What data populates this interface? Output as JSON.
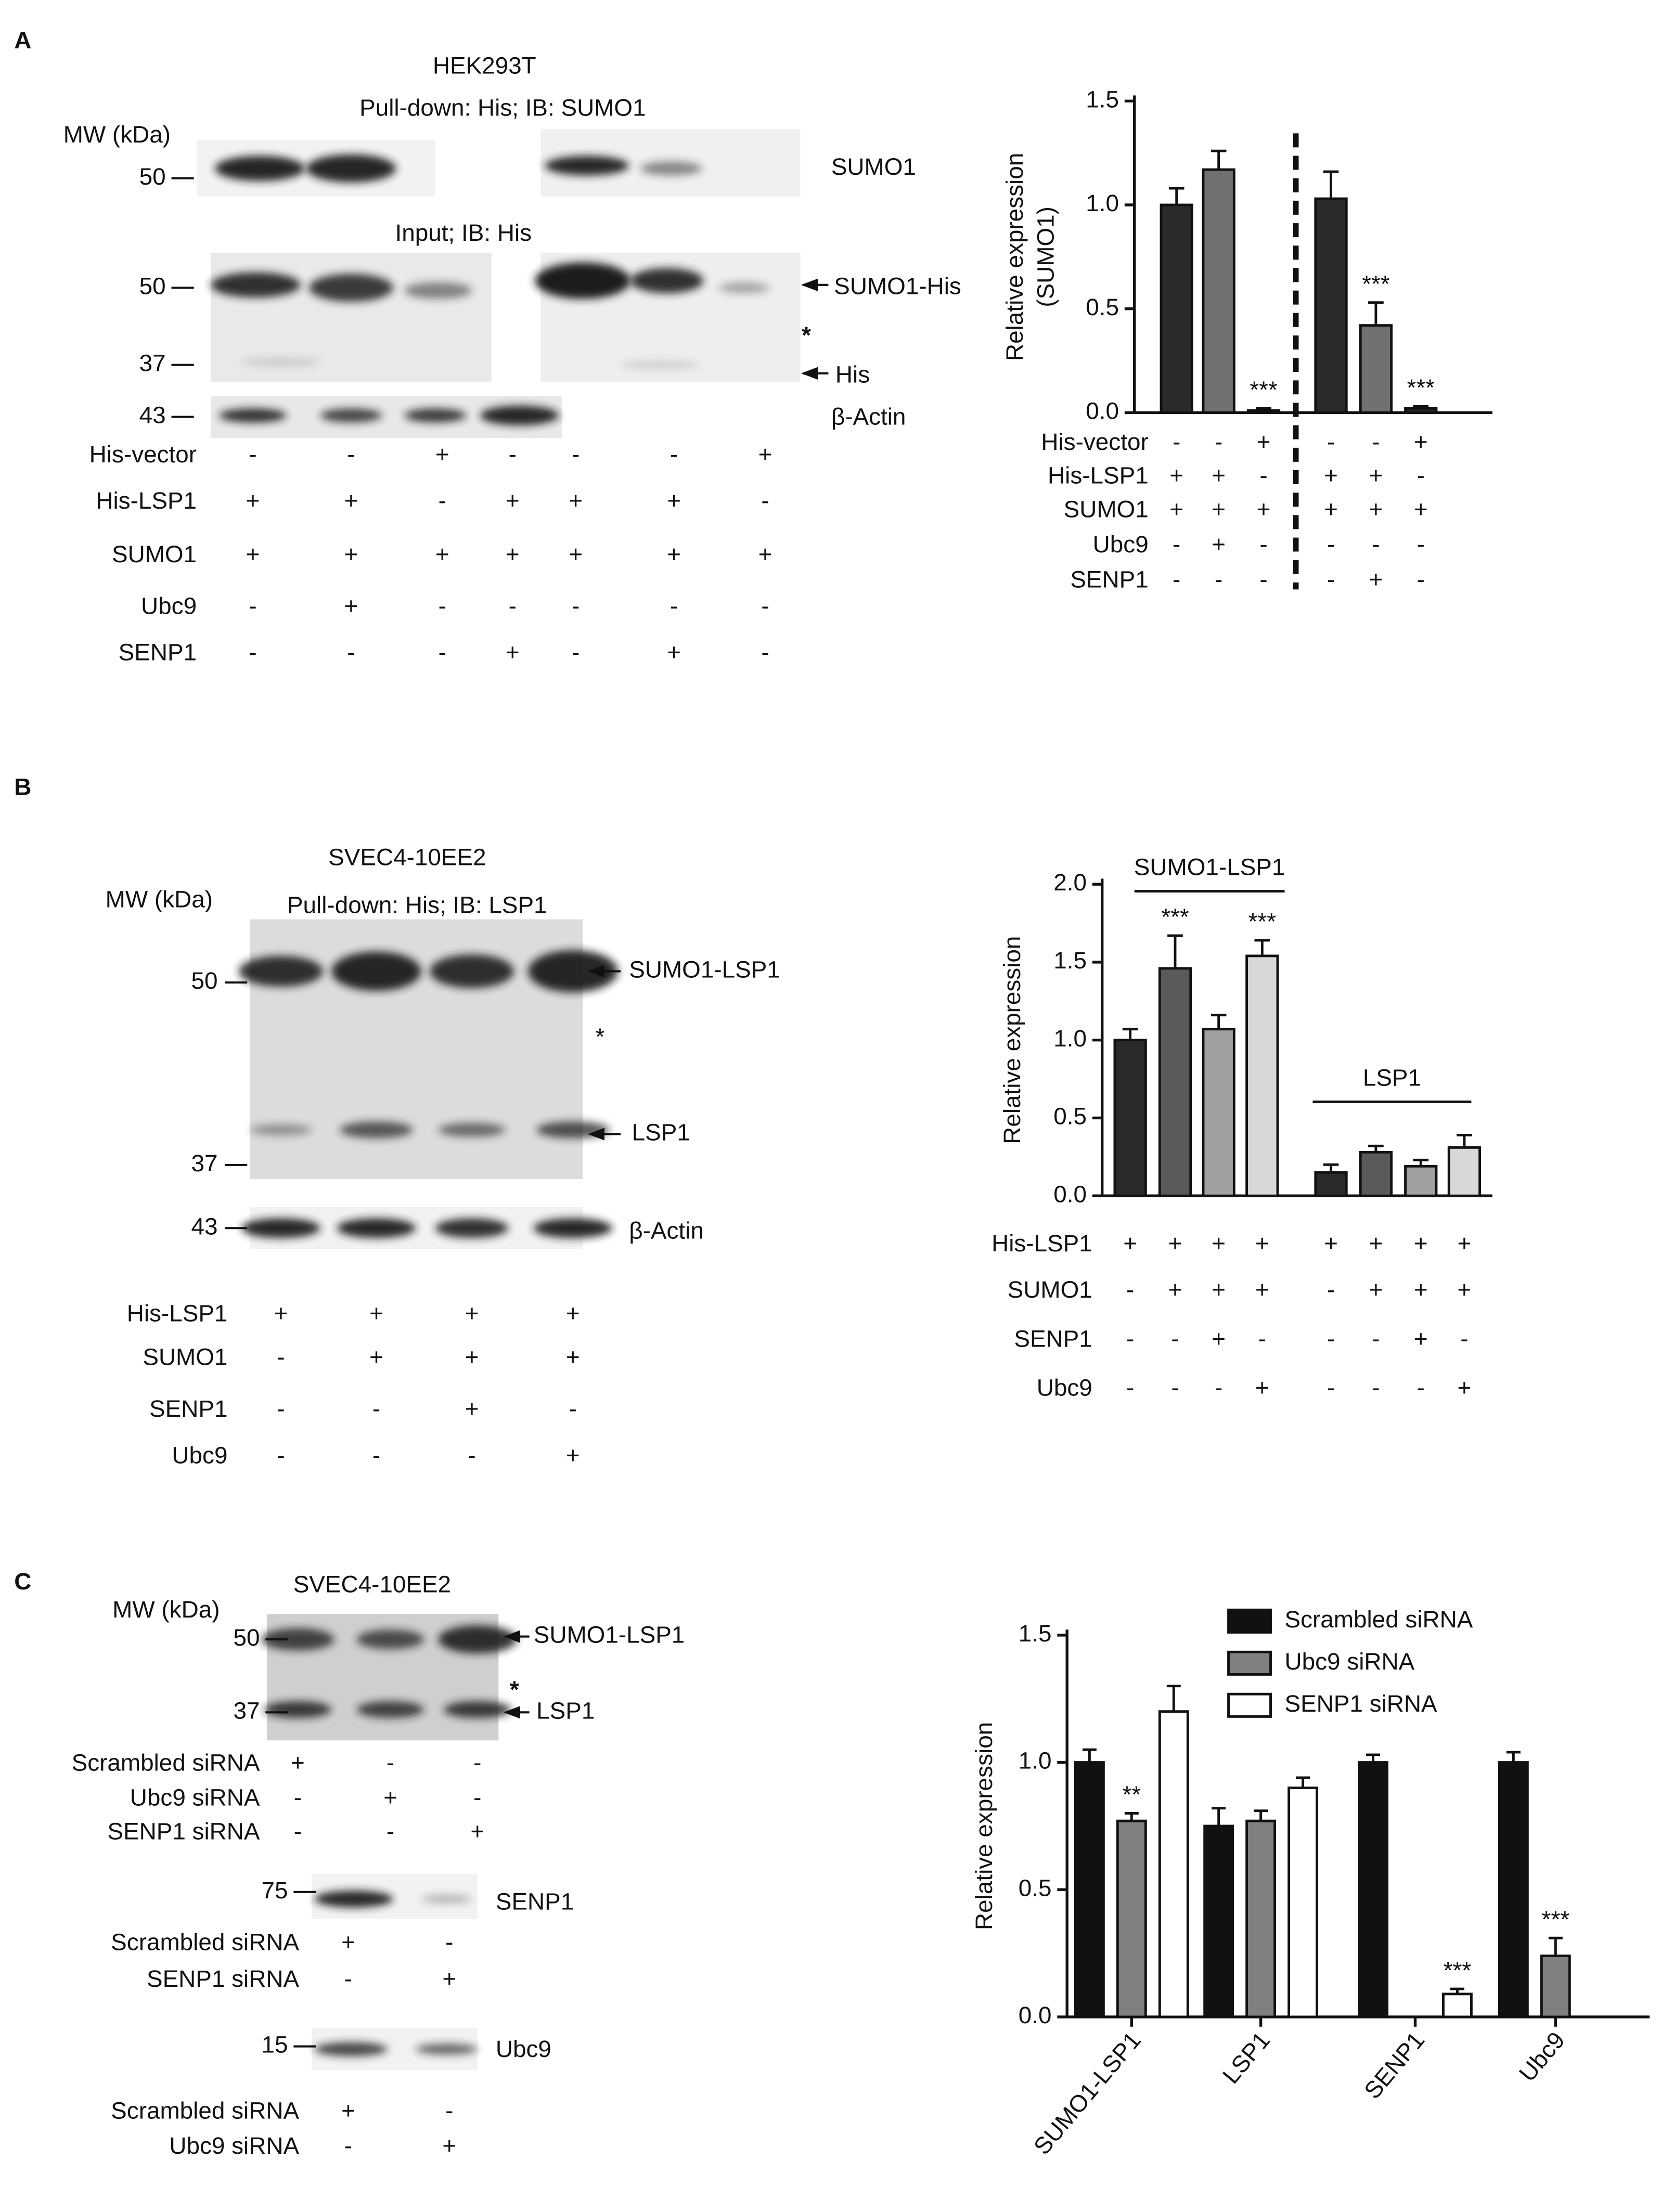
{
  "chart_data": [
    {
      "type": "bar",
      "ylabel": [
        "Relative expression",
        "(SUMO1)"
      ],
      "values": [
        1.0,
        1.17,
        0.01,
        1.03,
        0.42,
        0.02
      ],
      "errors": [
        0.08,
        0.09,
        0.01,
        0.13,
        0.11,
        0.01
      ],
      "colors": [
        "#2a2a2a",
        "#707070",
        "#2a2a2a",
        "#2a2a2a",
        "#707070",
        "#2a2a2a"
      ],
      "significance": [
        null,
        null,
        "***",
        null,
        "***",
        "***"
      ],
      "ylim": [
        0,
        1.5
      ],
      "yticks": [
        {
          "value": 0,
          "label": "0.0"
        },
        0.5,
        {
          "value": 1,
          "label": "1.0"
        },
        1.5
      ],
      "conditions": [
        {
          "label": "His-vector",
          "signs": [
            "-",
            "-",
            "+",
            "-",
            "-",
            "+"
          ]
        },
        {
          "label": "His-LSP1",
          "signs": [
            "+",
            "+",
            "-",
            "+",
            "+",
            "-"
          ]
        },
        {
          "label": "SUMO1",
          "signs": [
            "+",
            "+",
            "+",
            "+",
            "+",
            "+"
          ]
        },
        {
          "label": "Ubc9",
          "signs": [
            "-",
            "+",
            "-",
            "-",
            "-",
            "-"
          ]
        },
        {
          "label": "SENP1",
          "signs": [
            "-",
            "-",
            "-",
            "-",
            "+",
            "-"
          ]
        }
      ]
    },
    {
      "type": "bar",
      "ylabel": [
        "Relative expression"
      ],
      "values": [
        1.0,
        1.46,
        1.07,
        1.54,
        0.15,
        0.28,
        0.19,
        0.31
      ],
      "errors": [
        0.07,
        0.21,
        0.09,
        0.1,
        0.05,
        0.04,
        0.04,
        0.08
      ],
      "colors": [
        "#2a2a2a",
        "#5a5a5a",
        "#a0a0a0",
        "#d8d8d8",
        "#2a2a2a",
        "#5a5a5a",
        "#a0a0a0",
        "#d8d8d8"
      ],
      "significance": [
        null,
        "***",
        null,
        "***",
        null,
        null,
        null,
        null
      ],
      "group_labels": [
        "SUMO1-LSP1",
        "LSP1"
      ],
      "ylim": [
        0,
        2
      ],
      "yticks": [
        {
          "value": 0,
          "label": "0.0"
        },
        0.5,
        {
          "value": 1,
          "label": "1.0"
        },
        1.5,
        {
          "value": 2,
          "label": "2.0"
        }
      ],
      "conditions": [
        {
          "label": "His-LSP1",
          "signs": [
            "+",
            "+",
            "+",
            "+",
            "+",
            "+",
            "+",
            "+"
          ]
        },
        {
          "label": "SUMO1",
          "signs": [
            "-",
            "+",
            "+",
            "+",
            "-",
            "+",
            "+",
            "+"
          ]
        },
        {
          "label": "SENP1",
          "signs": [
            "-",
            "-",
            "+",
            "-",
            "-",
            "-",
            "+",
            "-"
          ]
        },
        {
          "label": "Ubc9",
          "signs": [
            "-",
            "-",
            "-",
            "+",
            "-",
            "-",
            "-",
            "+"
          ]
        }
      ]
    },
    {
      "type": "grouped-bar",
      "ylabel": [
        "Relative expression"
      ],
      "categories": [
        "SUMO1-LSP1",
        "LSP1",
        "SENP1",
        "Ubc9"
      ],
      "series": [
        {
          "name": "Scrambled siRNA",
          "color": "#111111",
          "values": [
            1.0,
            0.75,
            1.0,
            1.0
          ],
          "errors": [
            0.05,
            0.07,
            0.03,
            0.04
          ],
          "significance": [
            null,
            null,
            null,
            null
          ]
        },
        {
          "name": "Ubc9 siRNA",
          "color": "#808080",
          "values": [
            0.77,
            0.77,
            null,
            0.24
          ],
          "errors": [
            0.03,
            0.04,
            null,
            0.07
          ],
          "significance": [
            "**",
            null,
            null,
            "***"
          ]
        },
        {
          "name": "SENP1 siRNA",
          "color": "#ffffff",
          "values": [
            1.2,
            0.9,
            0.09,
            null
          ],
          "errors": [
            0.1,
            0.04,
            0.02,
            null
          ],
          "significance": [
            null,
            null,
            "***",
            null
          ]
        }
      ],
      "legend": "top-right",
      "ylim": [
        0,
        1.5
      ],
      "yticks": [
        {
          "value": 0,
          "label": "0.0"
        },
        0.5,
        {
          "value": 1,
          "label": "1.0"
        },
        1.5
      ]
    }
  ],
  "panels": [
    {
      "texts": [
        "A",
        "HEK293T",
        "Pull-down: His; IB: SUMO1",
        "MW (kDa)",
        "50",
        "SUMO1",
        "Input; IB: His",
        "50",
        "SUMO1-His",
        "*",
        "37",
        "His",
        "43",
        "β-Actin"
      ],
      "condition_tables": [
        [
          {
            "label": "His-vector",
            "signs": [
              "-",
              "-",
              "+",
              "-",
              "-",
              "-",
              "+"
            ]
          },
          {
            "label": "His-LSP1",
            "signs": [
              "+",
              "+",
              "-",
              "+",
              "+",
              "+",
              "-"
            ]
          },
          {
            "label": "SUMO1",
            "signs": [
              "+",
              "+",
              "+",
              "+",
              "+",
              "+",
              "+"
            ]
          },
          {
            "label": "Ubc9",
            "signs": [
              "-",
              "+",
              "-",
              "-",
              "-",
              "-",
              "-"
            ]
          },
          {
            "label": "SENP1",
            "signs": [
              "-",
              "-",
              "-",
              "+",
              "-",
              "+",
              "-"
            ]
          }
        ]
      ]
    },
    {
      "texts": [
        "B",
        "SVEC4-10EE2",
        "MW (kDa)",
        "Pull-down: His; IB: LSP1",
        "50",
        "SUMO1-LSP1",
        "*",
        "37",
        "LSP1",
        "43",
        "β-Actin"
      ],
      "condition_tables": [
        [
          {
            "label": "His-LSP1",
            "signs": [
              "+",
              "+",
              "+",
              "+"
            ]
          },
          {
            "label": "SUMO1",
            "signs": [
              "-",
              "+",
              "+",
              "+"
            ]
          },
          {
            "label": "SENP1",
            "signs": [
              "-",
              "-",
              "+",
              "-"
            ]
          },
          {
            "label": "Ubc9",
            "signs": [
              "-",
              "-",
              "-",
              "+"
            ]
          }
        ]
      ]
    },
    {
      "texts": [
        "C",
        "SVEC4-10EE2",
        "MW (kDa)",
        "50",
        "SUMO1-LSP1",
        "*",
        "37",
        "LSP1",
        "75",
        "SENP1",
        "15",
        "Ubc9"
      ],
      "condition_tables": [
        [
          {
            "label": "Scrambled siRNA",
            "signs": [
              "+",
              "-",
              "-"
            ]
          },
          {
            "label": "Ubc9 siRNA",
            "signs": [
              "-",
              "+",
              "-"
            ]
          },
          {
            "label": "SENP1 siRNA",
            "signs": [
              "-",
              "-",
              "+"
            ]
          }
        ],
        [
          {
            "label": "Scrambled siRNA",
            "signs": [
              "+",
              "-"
            ]
          },
          {
            "label": "SENP1 siRNA",
            "signs": [
              "-",
              "+"
            ]
          }
        ],
        [
          {
            "label": "Scrambled siRNA",
            "signs": [
              "+",
              "-"
            ]
          },
          {
            "label": "Ubc9 siRNA",
            "signs": [
              "-",
              "+"
            ]
          }
        ]
      ]
    }
  ]
}
